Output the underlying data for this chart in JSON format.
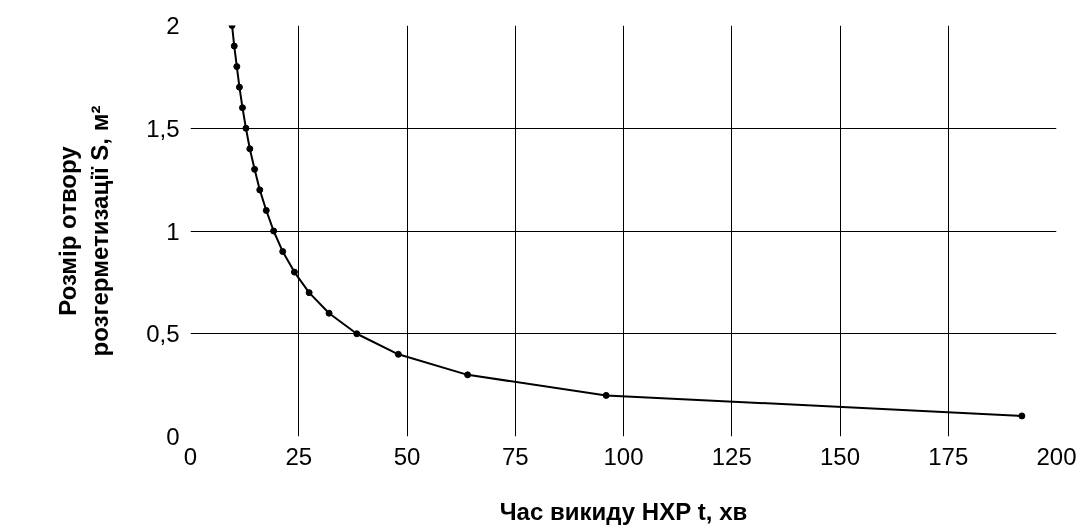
{
  "chart_data": {
    "type": "line",
    "xlabel": "Час викиду НХР t, хв",
    "ylabel": "Розмір отвору\nрозгерметизації S, м²",
    "x": [
      9.6,
      10.1,
      10.7,
      11.3,
      12,
      12.8,
      13.7,
      14.8,
      16,
      17.5,
      19.2,
      21.3,
      24,
      27.4,
      32,
      38.4,
      48,
      64,
      96,
      192
    ],
    "series": [
      {
        "color": "#000000",
        "values": [
          2,
          1.9,
          1.8,
          1.7,
          1.6,
          1.5,
          1.4,
          1.3,
          1.2,
          1.1,
          1,
          0.9,
          0.8,
          0.7,
          0.6,
          0.5,
          0.4,
          0.3,
          0.2,
          0.1
        ]
      }
    ],
    "xlim": [
      0,
      200
    ],
    "xticks": [
      0,
      25,
      50,
      75,
      100,
      125,
      150,
      175,
      200
    ],
    "ylim": [
      0,
      2
    ],
    "yticks": [
      0,
      {
        "value": 0.5,
        "label": "0,5"
      },
      1,
      {
        "value": 1.5,
        "label": "1,5"
      },
      2
    ],
    "grid": true,
    "marker": "circle",
    "line_style": "solid"
  }
}
